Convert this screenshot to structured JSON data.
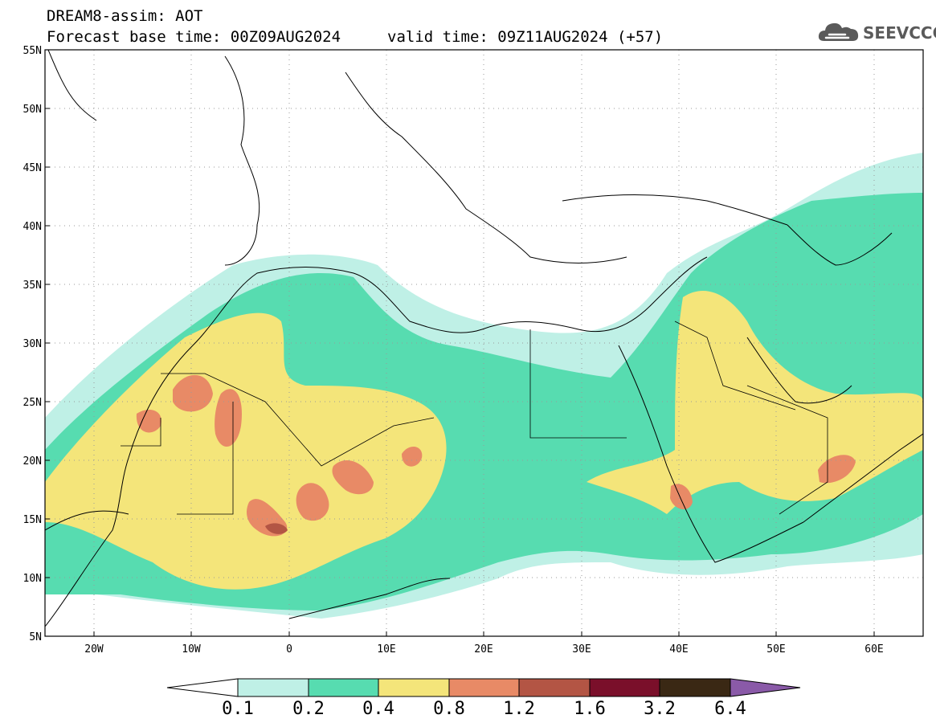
{
  "header": {
    "line1": "DREAM8-assim: AOT",
    "line2": "Forecast base time: 00Z09AUG2024",
    "valid": "valid time: 09Z11AUG2024 (+57)"
  },
  "logo": {
    "text": "SEEVCCC",
    "icon": "cloud-icon",
    "color": "#5a5a5a"
  },
  "map": {
    "lon_range": [
      -25,
      65
    ],
    "lat_range": [
      5,
      55
    ],
    "lat_ticks": [
      "55N",
      "50N",
      "45N",
      "40N",
      "35N",
      "30N",
      "25N",
      "20N",
      "15N",
      "10N",
      "5N"
    ],
    "lon_ticks": [
      "20W",
      "10W",
      "0",
      "10E",
      "20E",
      "30E",
      "40E",
      "50E",
      "60E"
    ],
    "grid": "dotted"
  },
  "colorbar": {
    "labels": [
      "0.1",
      "0.2",
      "0.4",
      "0.8",
      "1.2",
      "1.6",
      "3.2",
      "6.4"
    ],
    "colors": [
      "#ffffff",
      "#bff0e6",
      "#57dcb0",
      "#f4e57a",
      "#e88a66",
      "#b35544",
      "#7a0f2a",
      "#3a2814",
      "#8a5aa8"
    ]
  }
}
